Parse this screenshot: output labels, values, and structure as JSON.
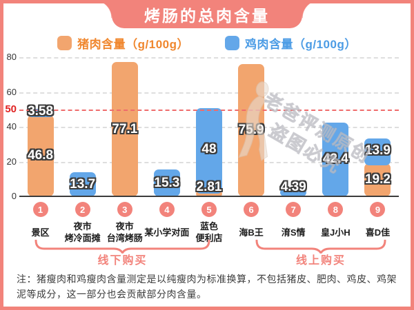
{
  "title": "烤肠的总肉含量",
  "note": "注：猪瘦肉和鸡瘦肉含量测定是以纯瘦肉为标准换算，不包括猪皮、肥肉、鸡皮、鸡架泥等成分，这一部分也会贡献部分肉含量。",
  "watermark": {
    "line1": "老爸评测原创",
    "line2": "盗图必究"
  },
  "colors": {
    "accent_salmon": "#f2837b",
    "pork_bar": "#f2a56e",
    "chicken_bar": "#63a7e9",
    "pork_text": "#f0872e",
    "chicken_text": "#4c9ce5",
    "reference_red": "#e02222",
    "gridline": "#dedede",
    "axis_line": "#3b3b3b"
  },
  "chart_data": {
    "type": "bar",
    "stacked": true,
    "title": "烤肠的总肉含量",
    "xlabel": "",
    "ylabel": "",
    "ylim": [
      0,
      80
    ],
    "yticks": [
      0,
      20,
      40,
      60,
      80
    ],
    "grid": true,
    "legend_position": "top",
    "reference_line": {
      "value": 50,
      "label": "50",
      "color": "#e02222"
    },
    "series": [
      {
        "key": "pork",
        "name": "猪肉含量（g/100g）",
        "color": "#f2a56e",
        "text_color": "#f0872e"
      },
      {
        "key": "chicken",
        "name": "鸡肉含量（g/100g）",
        "color": "#63a7e9",
        "text_color": "#4c9ce5"
      }
    ],
    "bars": [
      {
        "num": "1",
        "category": "景区",
        "segments": [
          {
            "series": "pork",
            "value": 46.8,
            "label": "46.8"
          },
          {
            "series": "chicken",
            "value": 3.58,
            "label": "3.58"
          }
        ]
      },
      {
        "num": "2",
        "category": "夜市\n烤冷面摊",
        "segments": [
          {
            "series": "chicken",
            "value": 13.7,
            "label": "13.7"
          }
        ]
      },
      {
        "num": "3",
        "category": "夜市\n台湾烤肠",
        "segments": [
          {
            "series": "pork",
            "value": 77.1,
            "label": "77.1"
          }
        ]
      },
      {
        "num": "4",
        "category": "某小学对面",
        "segments": [
          {
            "series": "chicken",
            "value": 15.3,
            "label": "15.3"
          }
        ]
      },
      {
        "num": "5",
        "category": "蓝色\n便利店",
        "segments": [
          {
            "series": "pork",
            "value": 2.81,
            "label": "2.81"
          },
          {
            "series": "chicken",
            "value": 48,
            "label": "48"
          }
        ]
      },
      {
        "num": "6",
        "category": "海B王",
        "segments": [
          {
            "series": "pork",
            "value": 75.9,
            "label": "75.9"
          }
        ]
      },
      {
        "num": "7",
        "category": "淯S情",
        "segments": [
          {
            "series": "chicken",
            "value": 4.39,
            "label": "4.39"
          }
        ]
      },
      {
        "num": "8",
        "category": "皇J小H",
        "segments": [
          {
            "series": "chicken",
            "value": 42.4,
            "label": "42.4"
          }
        ]
      },
      {
        "num": "9",
        "category": "喜D佳",
        "segments": [
          {
            "series": "pork",
            "value": 19.2,
            "label": "19.2"
          },
          {
            "series": "chicken",
            "value": 13.9,
            "label": "13.9"
          }
        ]
      }
    ],
    "group_braces": [
      {
        "label": "线下购买",
        "bar_range": "1-5"
      },
      {
        "label": "线上购买",
        "bar_range": "6-9"
      }
    ]
  }
}
